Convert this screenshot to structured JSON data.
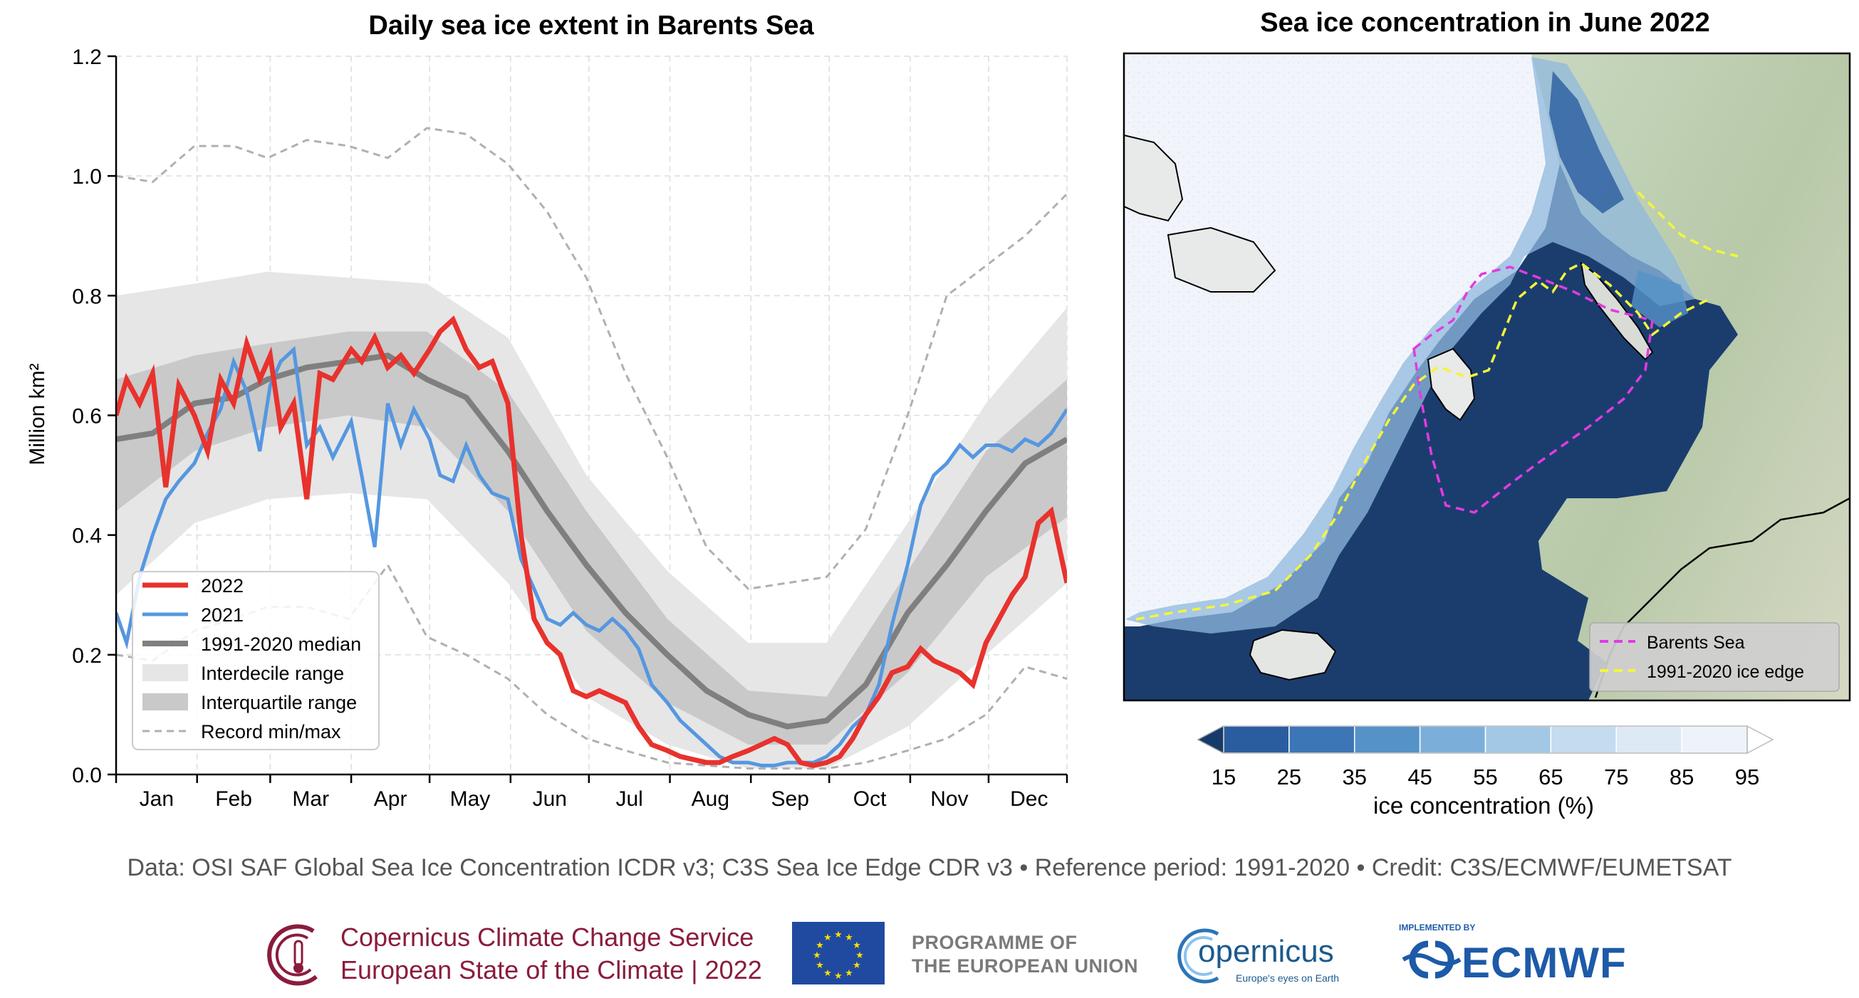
{
  "chart_data": [
    {
      "type": "line",
      "title": "Daily sea ice extent in Barents Sea",
      "ylabel": "Million km²",
      "ylim": [
        0.0,
        1.2
      ],
      "yticks": [
        "0.0",
        "0.2",
        "0.4",
        "0.6",
        "0.8",
        "1.0",
        "1.2"
      ],
      "month_labels": [
        "Jan",
        "Feb",
        "Mar",
        "Apr",
        "May",
        "Jun",
        "Jul",
        "Aug",
        "Sep",
        "Oct",
        "Nov",
        "Dec"
      ],
      "grid": true,
      "legend_position": "lower-left",
      "legend": [
        "2022",
        "2021",
        "1991-2020 median",
        "Interdecile range",
        "Interquartile range",
        "Record min/max"
      ],
      "series": [
        {
          "name": "2022",
          "color": "#e8322d",
          "x": [
            "Jan 1",
            "Jan 5",
            "Jan 10",
            "Jan 15",
            "Jan 20",
            "Jan 25",
            "Jan 31",
            "Feb 5",
            "Feb 10",
            "Feb 15",
            "Feb 20",
            "Feb 25",
            "Mar 1",
            "Mar 5",
            "Mar 10",
            "Mar 15",
            "Mar 20",
            "Mar 25",
            "Apr 1",
            "Apr 5",
            "Apr 10",
            "Apr 15",
            "Apr 20",
            "Apr 25",
            "May 1",
            "May 5",
            "May 10",
            "May 15",
            "May 20",
            "May 25",
            "May 31",
            "Jun 5",
            "Jun 10",
            "Jun 15",
            "Jun 20",
            "Jun 25",
            "Jun 30",
            "Jul 5",
            "Jul 10",
            "Jul 15",
            "Jul 20",
            "Jul 25",
            "Jul 31",
            "Aug 5",
            "Aug 10",
            "Aug 15",
            "Aug 20",
            "Aug 25",
            "Aug 31",
            "Sep 5",
            "Sep 10",
            "Sep 15",
            "Sep 20",
            "Sep 25",
            "Sep 30",
            "Oct 5",
            "Oct 10",
            "Oct 15",
            "Oct 20",
            "Oct 25",
            "Oct 31",
            "Nov 5",
            "Nov 10",
            "Nov 15",
            "Nov 20",
            "Nov 25",
            "Nov 30",
            "Dec 5",
            "Dec 10",
            "Dec 15",
            "Dec 20",
            "Dec 25",
            "Dec 31"
          ],
          "y": [
            0.6,
            0.66,
            0.62,
            0.67,
            0.48,
            0.65,
            0.6,
            0.54,
            0.66,
            0.62,
            0.72,
            0.66,
            0.7,
            0.58,
            0.62,
            0.46,
            0.67,
            0.66,
            0.71,
            0.69,
            0.73,
            0.68,
            0.7,
            0.67,
            0.71,
            0.74,
            0.76,
            0.71,
            0.68,
            0.69,
            0.62,
            0.4,
            0.26,
            0.22,
            0.2,
            0.14,
            0.13,
            0.14,
            0.13,
            0.12,
            0.08,
            0.05,
            0.04,
            0.03,
            0.025,
            0.02,
            0.02,
            0.03,
            0.04,
            0.05,
            0.06,
            0.05,
            0.02,
            0.015,
            0.02,
            0.03,
            0.06,
            0.1,
            0.13,
            0.17,
            0.18,
            0.21,
            0.19,
            0.18,
            0.17,
            0.15,
            0.22,
            0.26,
            0.3,
            0.33,
            0.42,
            0.44,
            0.32
          ]
        },
        {
          "name": "2021",
          "color": "#5597e0",
          "x": [
            "Jan 1",
            "Jan 5",
            "Jan 10",
            "Jan 15",
            "Jan 20",
            "Jan 25",
            "Jan 31",
            "Feb 5",
            "Feb 10",
            "Feb 15",
            "Feb 20",
            "Feb 25",
            "Mar 1",
            "Mar 5",
            "Mar 10",
            "Mar 15",
            "Mar 20",
            "Mar 25",
            "Apr 1",
            "Apr 5",
            "Apr 10",
            "Apr 15",
            "Apr 20",
            "Apr 25",
            "May 1",
            "May 5",
            "May 10",
            "May 15",
            "May 20",
            "May 25",
            "May 31",
            "Jun 5",
            "Jun 10",
            "Jun 15",
            "Jun 20",
            "Jun 25",
            "Jun 30",
            "Jul 5",
            "Jul 10",
            "Jul 15",
            "Jul 20",
            "Jul 25",
            "Jul 31",
            "Aug 5",
            "Aug 10",
            "Aug 15",
            "Aug 20",
            "Aug 25",
            "Aug 31",
            "Sep 5",
            "Sep 10",
            "Sep 15",
            "Sep 20",
            "Sep 25",
            "Sep 30",
            "Oct 5",
            "Oct 10",
            "Oct 15",
            "Oct 20",
            "Oct 25",
            "Oct 31",
            "Nov 5",
            "Nov 10",
            "Nov 15",
            "Nov 20",
            "Nov 25",
            "Nov 30",
            "Dec 5",
            "Dec 10",
            "Dec 15",
            "Dec 20",
            "Dec 25",
            "Dec 31"
          ],
          "y": [
            0.27,
            0.22,
            0.33,
            0.4,
            0.46,
            0.49,
            0.52,
            0.57,
            0.61,
            0.69,
            0.64,
            0.54,
            0.65,
            0.69,
            0.71,
            0.55,
            0.58,
            0.53,
            0.59,
            0.5,
            0.38,
            0.62,
            0.55,
            0.61,
            0.56,
            0.5,
            0.49,
            0.55,
            0.5,
            0.47,
            0.46,
            0.36,
            0.31,
            0.26,
            0.25,
            0.27,
            0.25,
            0.24,
            0.26,
            0.24,
            0.21,
            0.15,
            0.12,
            0.09,
            0.07,
            0.05,
            0.03,
            0.02,
            0.02,
            0.015,
            0.015,
            0.02,
            0.02,
            0.02,
            0.03,
            0.05,
            0.08,
            0.1,
            0.15,
            0.25,
            0.35,
            0.45,
            0.5,
            0.52,
            0.55,
            0.53,
            0.55,
            0.55,
            0.54,
            0.56,
            0.55,
            0.57,
            0.61
          ]
        },
        {
          "name": "1991-2020 median",
          "color": "#7f7f7f",
          "x": [
            "Jan 1",
            "Jan 15",
            "Jan 31",
            "Feb 15",
            "Feb 28",
            "Mar 15",
            "Mar 31",
            "Apr 15",
            "Apr 30",
            "May 15",
            "May 31",
            "Jun 15",
            "Jun 30",
            "Jul 15",
            "Jul 31",
            "Aug 15",
            "Aug 31",
            "Sep 15",
            "Sep 30",
            "Oct 15",
            "Oct 31",
            "Nov 15",
            "Nov 30",
            "Dec 15",
            "Dec 31"
          ],
          "y": [
            0.56,
            0.57,
            0.62,
            0.63,
            0.66,
            0.68,
            0.69,
            0.7,
            0.66,
            0.63,
            0.54,
            0.44,
            0.35,
            0.27,
            0.2,
            0.14,
            0.1,
            0.08,
            0.09,
            0.15,
            0.27,
            0.35,
            0.44,
            0.52,
            0.56
          ]
        },
        {
          "name": "Interdecile range",
          "color": "#e6e6e6",
          "x": [
            "Jan 1",
            "Jan 31",
            "Feb 28",
            "Mar 31",
            "Apr 30",
            "May 31",
            "Jun 30",
            "Jul 31",
            "Aug 31",
            "Sep 30",
            "Oct 31",
            "Nov 30",
            "Dec 31"
          ],
          "upper": [
            0.8,
            0.82,
            0.84,
            0.83,
            0.82,
            0.73,
            0.5,
            0.34,
            0.22,
            0.22,
            0.42,
            0.62,
            0.78
          ],
          "lower": [
            0.3,
            0.42,
            0.46,
            0.47,
            0.46,
            0.32,
            0.13,
            0.05,
            0.01,
            0.01,
            0.08,
            0.2,
            0.32
          ]
        },
        {
          "name": "Interquartile range",
          "color": "#c9c9c9",
          "x": [
            "Jan 1",
            "Jan 31",
            "Feb 28",
            "Mar 31",
            "Apr 30",
            "May 31",
            "Jun 30",
            "Jul 31",
            "Aug 31",
            "Sep 30",
            "Oct 31",
            "Nov 30",
            "Dec 31"
          ],
          "upper": [
            0.66,
            0.7,
            0.72,
            0.74,
            0.74,
            0.64,
            0.44,
            0.26,
            0.14,
            0.13,
            0.34,
            0.54,
            0.66
          ],
          "lower": [
            0.44,
            0.54,
            0.58,
            0.6,
            0.58,
            0.44,
            0.24,
            0.12,
            0.05,
            0.05,
            0.17,
            0.33,
            0.43
          ]
        },
        {
          "name": "Record min/max",
          "color": "#b0b0b0",
          "x": [
            "Jan 1",
            "Jan 15",
            "Jan 31",
            "Feb 15",
            "Feb 28",
            "Mar 15",
            "Mar 31",
            "Apr 15",
            "Apr 30",
            "May 15",
            "May 31",
            "Jun 15",
            "Jun 30",
            "Jul 15",
            "Jul 31",
            "Aug 15",
            "Aug 31",
            "Sep 15",
            "Sep 30",
            "Oct 15",
            "Oct 31",
            "Nov 15",
            "Nov 30",
            "Dec 15",
            "Dec 31"
          ],
          "max": [
            1.0,
            0.99,
            1.05,
            1.05,
            1.03,
            1.06,
            1.05,
            1.03,
            1.08,
            1.07,
            1.02,
            0.94,
            0.83,
            0.67,
            0.53,
            0.38,
            0.31,
            0.32,
            0.33,
            0.41,
            0.6,
            0.8,
            0.85,
            0.9,
            0.97
          ],
          "min": [
            0.2,
            0.19,
            0.24,
            0.26,
            0.28,
            0.28,
            0.26,
            0.35,
            0.23,
            0.2,
            0.16,
            0.1,
            0.06,
            0.04,
            0.02,
            0.015,
            0.01,
            0.01,
            0.01,
            0.02,
            0.04,
            0.06,
            0.1,
            0.18,
            0.16
          ]
        }
      ]
    },
    {
      "type": "heatmap",
      "title": "Sea ice concentration in June 2022",
      "colorbar_label": "ice concentration (%)",
      "colorbar_ticks": [
        "15",
        "25",
        "35",
        "45",
        "55",
        "65",
        "75",
        "85",
        "95"
      ],
      "colorbar_colors": [
        "#2a5d9f",
        "#3d76b6",
        "#5592c8",
        "#7bafd9",
        "#a2c8e6",
        "#c4dcef",
        "#dde9f5",
        "#eef3fa"
      ],
      "legend_position": "lower-right",
      "legend": [
        {
          "name": "Barents Sea",
          "color": "#e23be2",
          "style": "dashed"
        },
        {
          "name": "1991-2020 ice edge",
          "color": "#f5f53a",
          "style": "dashed"
        }
      ]
    }
  ],
  "footer": {
    "credits": "Data: OSI SAF Global Sea Ice Concentration ICDR v3; C3S Sea Ice Edge CDR v3 • Reference period: 1991-2020 • Credit: C3S/ECMWF/EUMETSAT"
  },
  "logos": {
    "c3s_line1": "Copernicus Climate Change Service",
    "c3s_line2": "European State of the Climate | 2022",
    "programme_line1": "PROGRAMME OF",
    "programme_line2": "THE EUROPEAN UNION",
    "copernicus_name": "opernicus",
    "copernicus_tagline": "Europe's eyes on Earth",
    "ecmwf_small": "IMPLEMENTED BY",
    "ecmwf_name": "ECMWF"
  }
}
